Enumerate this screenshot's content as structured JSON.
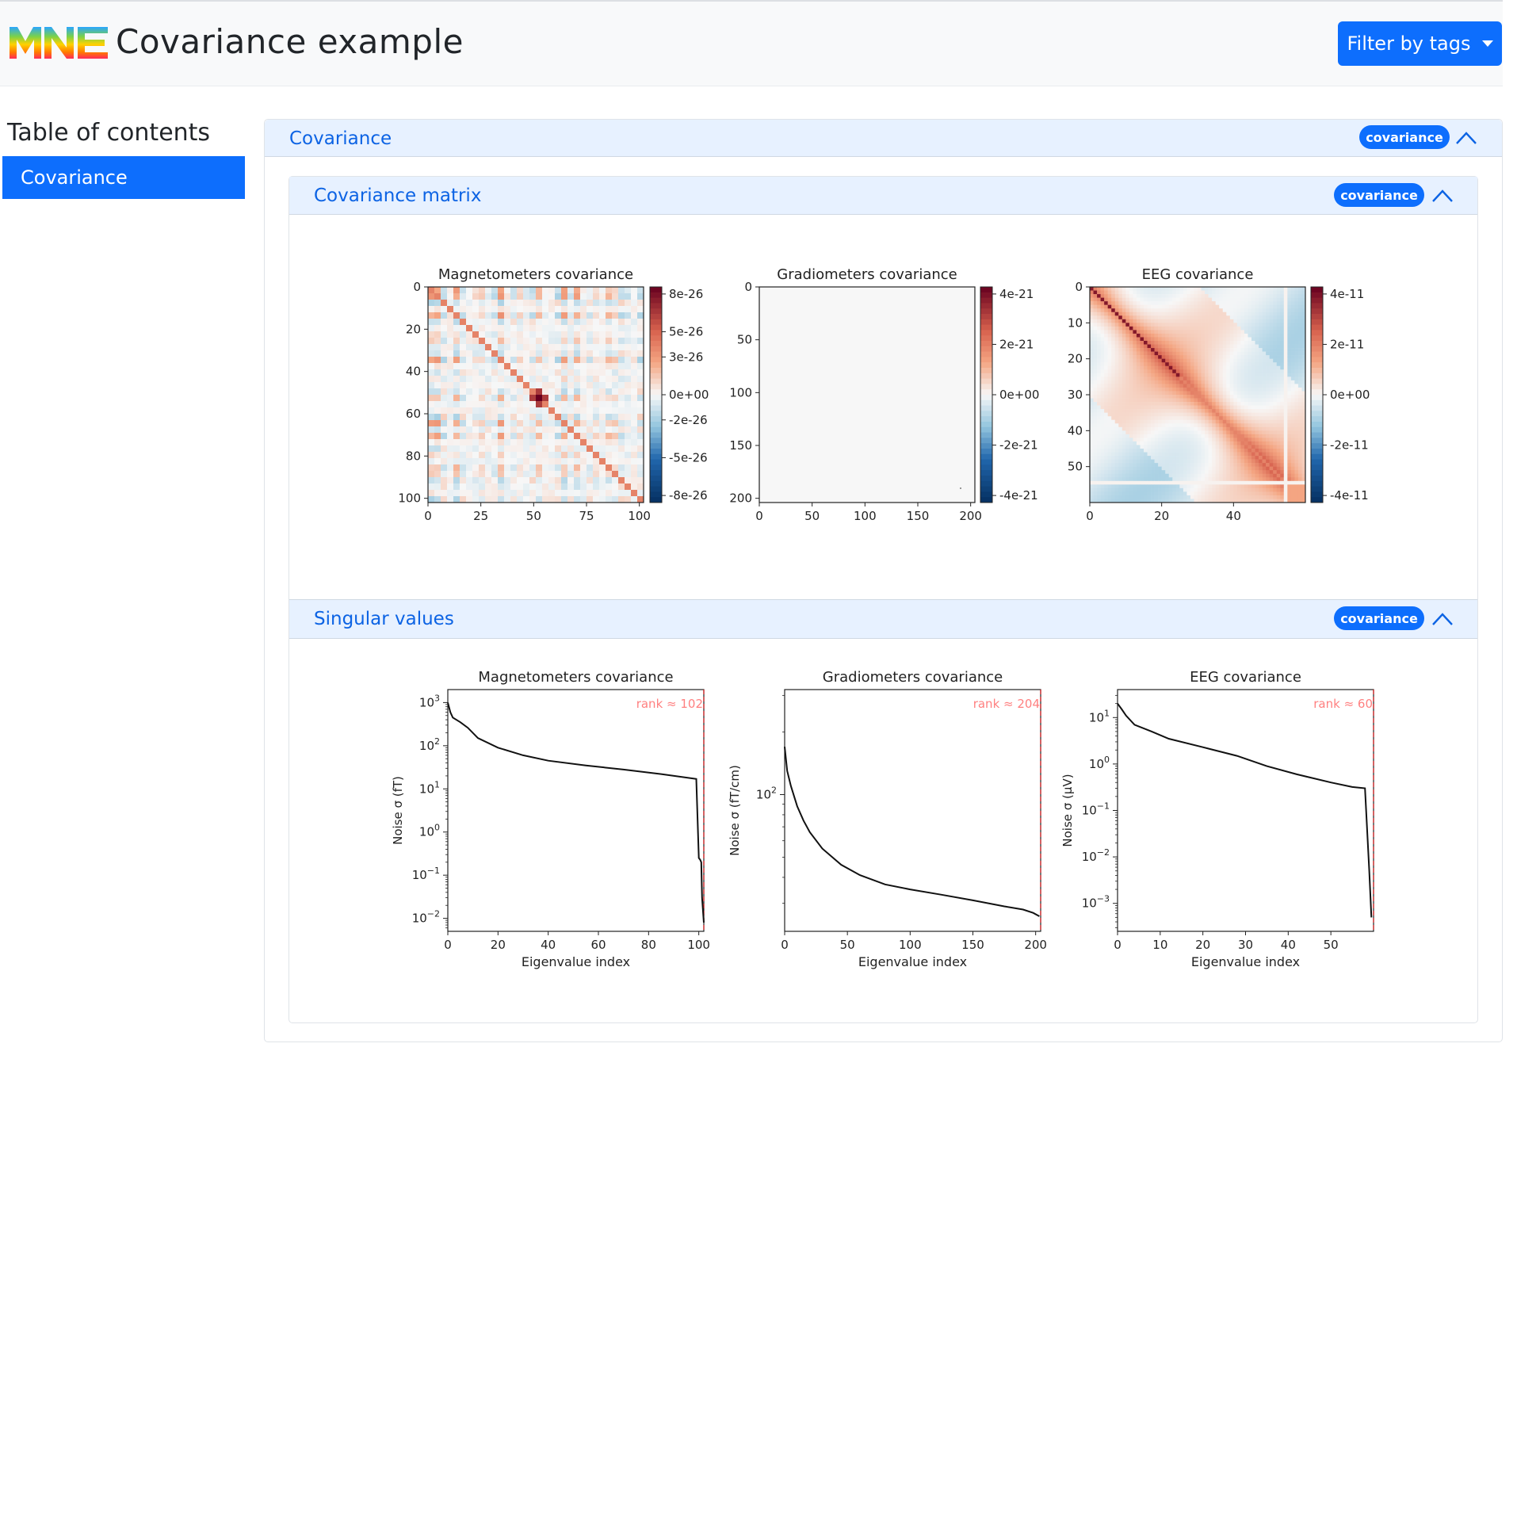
{
  "header": {
    "title": "Covariance example",
    "filter_label": "Filter by tags"
  },
  "toc": {
    "title": "Table of contents",
    "items": [
      "Covariance"
    ]
  },
  "section": {
    "title": "Covariance",
    "tag": "covariance",
    "subsections": [
      {
        "title": "Covariance matrix",
        "tag": "covariance"
      },
      {
        "title": "Singular values",
        "tag": "covariance"
      }
    ]
  },
  "chart_data": [
    {
      "type": "heatmap",
      "title": "Magnetometers covariance",
      "xticks": [
        "0",
        "25",
        "50",
        "75",
        "100"
      ],
      "yticks": [
        "0",
        "20",
        "40",
        "60",
        "80",
        "100"
      ],
      "xlim": [
        0,
        102
      ],
      "ylim": [
        0,
        102
      ],
      "colorbar_ticks": [
        "8e-26",
        "5e-26",
        "3e-26",
        "0e+00",
        "-2e-26",
        "-5e-26",
        "-8e-26"
      ],
      "colorbar_values": [
        8e-26,
        5e-26,
        3e-26,
        0,
        -2e-26,
        -5e-26,
        -8e-26
      ],
      "colormap": "RdBu_r"
    },
    {
      "type": "heatmap",
      "title": "Gradiometers covariance",
      "xticks": [
        "0",
        "50",
        "100",
        "150",
        "200"
      ],
      "yticks": [
        "0",
        "50",
        "100",
        "150",
        "200"
      ],
      "xlim": [
        0,
        204
      ],
      "ylim": [
        0,
        204
      ],
      "colorbar_ticks": [
        "4e-21",
        "2e-21",
        "0e+00",
        "-2e-21",
        "-4e-21"
      ],
      "colorbar_values": [
        4e-21,
        2e-21,
        0,
        -2e-21,
        -4e-21
      ],
      "colormap": "RdBu_r"
    },
    {
      "type": "heatmap",
      "title": "EEG covariance",
      "xticks": [
        "0",
        "20",
        "40"
      ],
      "yticks": [
        "0",
        "10",
        "20",
        "30",
        "40",
        "50"
      ],
      "xlim": [
        0,
        60
      ],
      "ylim": [
        0,
        60
      ],
      "colorbar_ticks": [
        "4e-11",
        "2e-11",
        "0e+00",
        "-2e-11",
        "-4e-11"
      ],
      "colorbar_values": [
        4e-11,
        2e-11,
        0,
        -2e-11,
        -4e-11
      ],
      "colormap": "RdBu_r"
    },
    {
      "type": "line",
      "title": "Magnetometers covariance",
      "xlabel": "Eigenvalue index",
      "ylabel": "Noise σ (fT)",
      "xticks": [
        "0",
        "20",
        "40",
        "60",
        "80",
        "100"
      ],
      "xlim": [
        0,
        102
      ],
      "ylog": true,
      "ylim": [
        0.005,
        2000
      ],
      "yticks": [
        {
          "base": "10",
          "exp": "3"
        },
        {
          "base": "10",
          "exp": "2"
        },
        {
          "base": "10",
          "exp": "1"
        },
        {
          "base": "10",
          "exp": "0"
        },
        {
          "base": "10",
          "exp": "−1"
        },
        {
          "base": "10",
          "exp": "−2"
        }
      ],
      "ytick_values": [
        1000,
        100,
        10,
        1,
        0.1,
        0.01
      ],
      "rank_label": "rank ≈ 102",
      "rank": 102,
      "series": [
        {
          "x": [
            0,
            1,
            2,
            5,
            8,
            12,
            20,
            30,
            40,
            55,
            70,
            85,
            99,
            100,
            100.5,
            101,
            101.3,
            102
          ],
          "y": [
            1000,
            600,
            450,
            350,
            260,
            150,
            90,
            60,
            45,
            35,
            28,
            22,
            17,
            0.25,
            0.23,
            0.2,
            0.03,
            0.008
          ]
        }
      ]
    },
    {
      "type": "line",
      "title": "Gradiometers covariance",
      "xlabel": "Eigenvalue index",
      "ylabel": "Noise σ (fT/cm)",
      "xticks": [
        "0",
        "50",
        "100",
        "150",
        "200"
      ],
      "xlim": [
        0,
        204
      ],
      "ylog": true,
      "ylim": [
        22,
        320
      ],
      "yticks": [
        {
          "base": "10",
          "exp": "2"
        }
      ],
      "ytick_values": [
        100
      ],
      "rank_label": "rank ≈ 204",
      "rank": 204,
      "series": [
        {
          "x": [
            0,
            2,
            5,
            10,
            15,
            20,
            30,
            45,
            60,
            80,
            100,
            125,
            150,
            175,
            190,
            198,
            203
          ],
          "y": [
            170,
            130,
            110,
            88,
            75,
            66,
            55,
            46,
            41,
            37,
            35,
            33,
            31,
            29,
            28,
            27,
            26
          ]
        }
      ]
    },
    {
      "type": "line",
      "title": "EEG covariance",
      "xlabel": "Eigenvalue index",
      "ylabel": "Noise σ (μV)",
      "xticks": [
        "0",
        "10",
        "20",
        "30",
        "40",
        "50"
      ],
      "xlim": [
        0,
        60
      ],
      "ylog": true,
      "ylim": [
        0.00025,
        40
      ],
      "yticks": [
        {
          "base": "10",
          "exp": "1"
        },
        {
          "base": "10",
          "exp": "0"
        },
        {
          "base": "10",
          "exp": "−1"
        },
        {
          "base": "10",
          "exp": "−2"
        },
        {
          "base": "10",
          "exp": "−3"
        }
      ],
      "ytick_values": [
        10,
        1,
        0.1,
        0.01,
        0.001
      ],
      "rank_label": "rank ≈ 60",
      "rank": 60,
      "series": [
        {
          "x": [
            0,
            1,
            2,
            4,
            8,
            12,
            20,
            28,
            35,
            42,
            50,
            55,
            58,
            59,
            59.5
          ],
          "y": [
            20,
            15,
            11,
            7,
            5,
            3.5,
            2.3,
            1.5,
            0.9,
            0.6,
            0.4,
            0.32,
            0.3,
            0.005,
            0.0005
          ]
        }
      ]
    }
  ]
}
